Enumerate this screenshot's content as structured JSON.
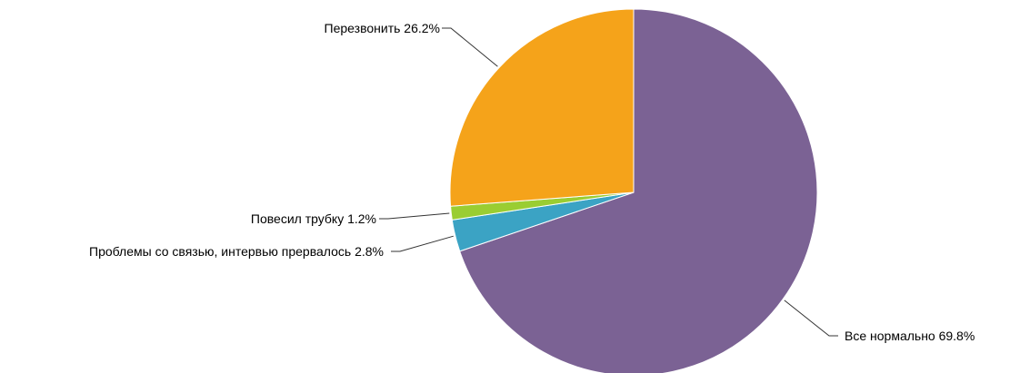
{
  "chart_data": {
    "type": "pie",
    "title": "",
    "categories": [
      "Все нормально",
      "Проблемы со связью, интервью прервалось",
      "Повесил трубку",
      "Перезвонить"
    ],
    "values": [
      69.8,
      2.8,
      1.2,
      26.2
    ],
    "labels": [
      "Все нормально 69.8%",
      "Проблемы со связью, интервью прервалось 2.8%",
      "Повесил трубку 1.2%",
      "Перезвонить 26.2%"
    ],
    "colors": [
      "#7b6294",
      "#3ba3c4",
      "#9acd32",
      "#f5a31a"
    ],
    "start_angle": "12 o'clock",
    "direction": "clockwise",
    "legend": "none"
  }
}
